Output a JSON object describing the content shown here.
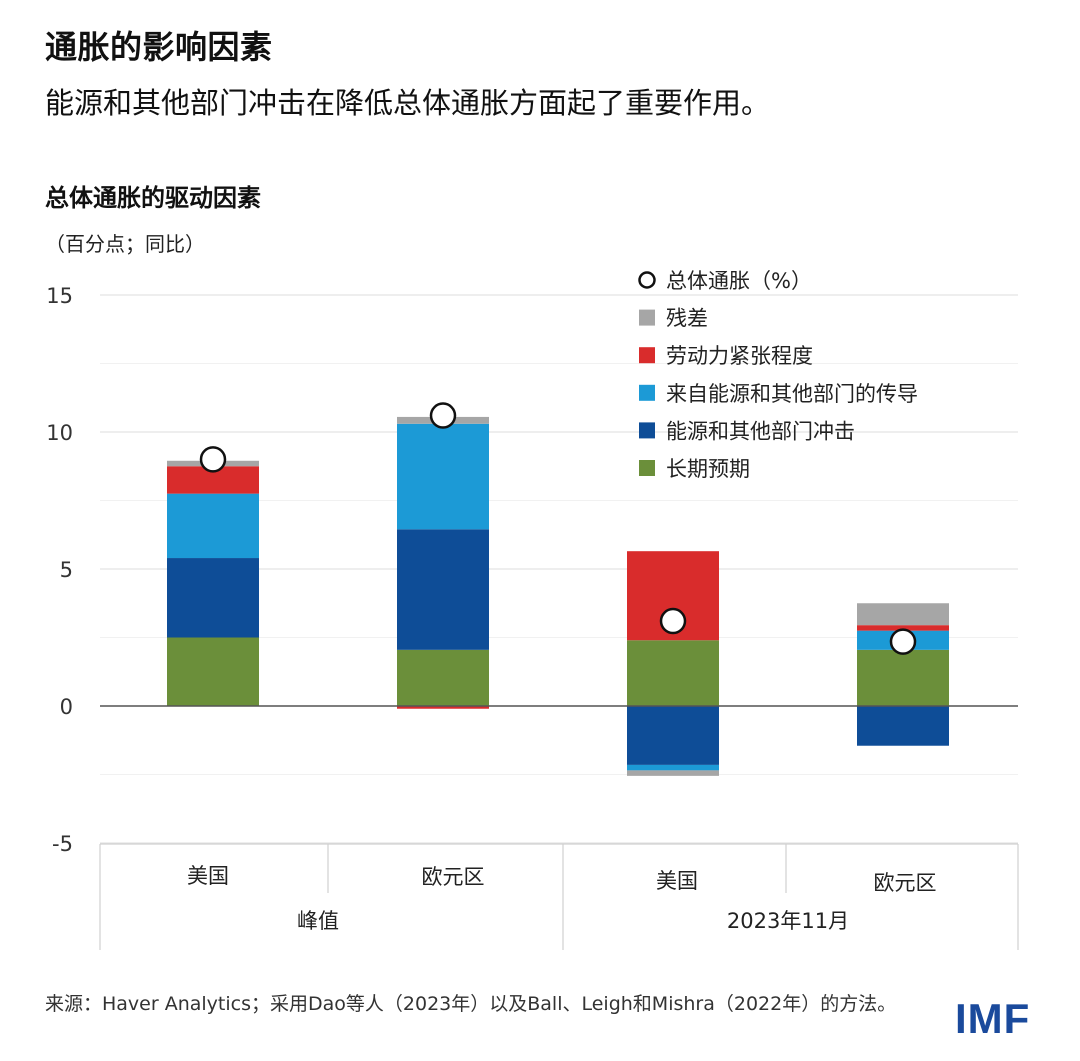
{
  "header": {
    "title": "通胀的影响因素",
    "subtitle": "能源和其他部门冲击在降低总体通胀方面起了重要作用。"
  },
  "chart_header": {
    "title": "总体通胀的驱动因素",
    "unit": "（百分点；同比）"
  },
  "chart_data": {
    "type": "bar",
    "stacked": true,
    "categories": [
      "美国",
      "欧元区",
      "美国",
      "欧元区"
    ],
    "groups": [
      {
        "label": "峰值",
        "categories": [
          0,
          1
        ]
      },
      {
        "label": "2023年11月",
        "categories": [
          2,
          3
        ]
      }
    ],
    "ylim": [
      -5,
      15
    ],
    "yticks": [
      15,
      10,
      5,
      0,
      -5
    ],
    "grid": true,
    "legend_position": "top-right",
    "series": [
      {
        "name": "长期预期",
        "color": "#6b8f3a",
        "values": [
          2.5,
          2.05,
          2.4,
          2.05
        ]
      },
      {
        "name": "能源和其他部门冲击",
        "color": "#0e4d97",
        "values": [
          2.9,
          4.4,
          -2.15,
          -1.45
        ]
      },
      {
        "name": "来自能源和其他部门的传导",
        "color": "#1c9ad6",
        "values": [
          2.35,
          3.85,
          -0.2,
          0.7
        ]
      },
      {
        "name": "劳动力紧张程度",
        "color": "#d92c2c",
        "values": [
          1.0,
          -0.1,
          3.25,
          0.2
        ]
      },
      {
        "name": "残差",
        "color": "#a6a6a6",
        "values": [
          0.2,
          0.25,
          -0.2,
          0.8
        ]
      }
    ],
    "headline": {
      "name": "总体通胀（%）",
      "values": [
        9.0,
        10.6,
        3.1,
        2.35
      ]
    }
  },
  "footer": {
    "source": "来源：Haver Analytics；采用Dao等人（2023年）以及Ball、Leigh和Mishra（2022年）的方法。",
    "logo": "IMF"
  }
}
